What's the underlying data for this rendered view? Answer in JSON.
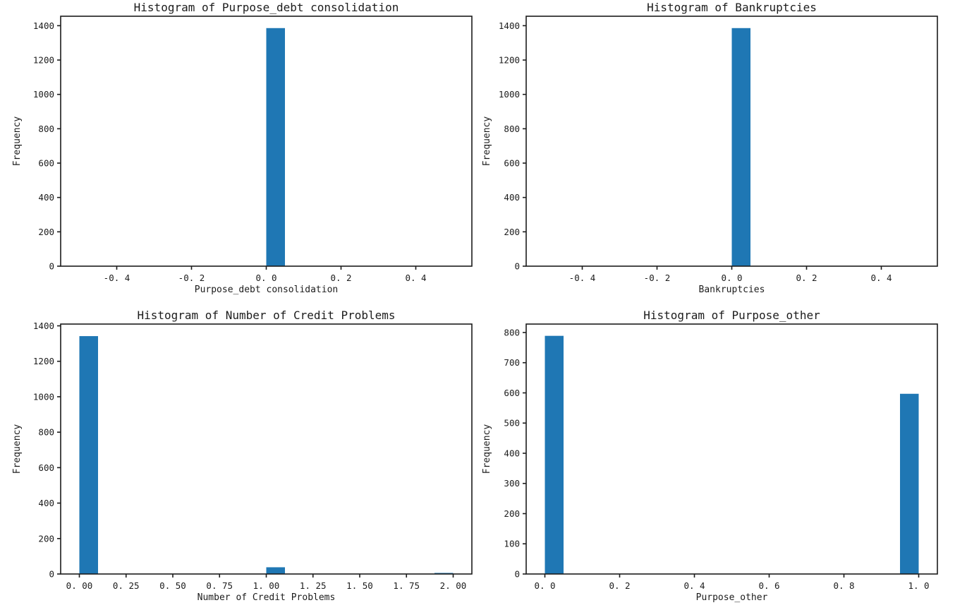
{
  "figure": {
    "background": "#ffffff",
    "bar_color": "#1f77b4",
    "axis_color": "#1c1c1c",
    "text_color": "#1c1c1c"
  },
  "chart_data": [
    {
      "type": "bar",
      "variant": "histogram",
      "title": "Histogram of Purpose_debt consolidation",
      "xlabel": "Purpose_debt consolidation",
      "ylabel": "Frequency",
      "xlim": [
        -0.55,
        0.55
      ],
      "ylim": [
        0,
        1455
      ],
      "grid": false,
      "legend": null,
      "xticks": {
        "values": [
          -0.4,
          -0.2,
          0.0,
          0.2,
          0.4
        ],
        "labels": [
          "-0. 4",
          "-0. 2",
          "0. 0",
          "0. 2",
          "0. 4"
        ]
      },
      "yticks": {
        "values": [
          0,
          200,
          400,
          600,
          800,
          1000,
          1200,
          1400
        ],
        "labels": [
          "0",
          "200",
          "400",
          "600",
          "800",
          "1000",
          "1200",
          "1400"
        ]
      },
      "bin_width": 0.05,
      "bars": [
        {
          "x0": 0.0,
          "x1": 0.05,
          "count": 1386
        }
      ]
    },
    {
      "type": "bar",
      "variant": "histogram",
      "title": "Histogram of Bankruptcies",
      "xlabel": "Bankruptcies",
      "ylabel": "Frequency",
      "xlim": [
        -0.55,
        0.55
      ],
      "ylim": [
        0,
        1455
      ],
      "grid": false,
      "legend": null,
      "xticks": {
        "values": [
          -0.4,
          -0.2,
          0.0,
          0.2,
          0.4
        ],
        "labels": [
          "-0. 4",
          "-0. 2",
          "0. 0",
          "0. 2",
          "0. 4"
        ]
      },
      "yticks": {
        "values": [
          0,
          200,
          400,
          600,
          800,
          1000,
          1200,
          1400
        ],
        "labels": [
          "0",
          "200",
          "400",
          "600",
          "800",
          "1000",
          "1200",
          "1400"
        ]
      },
      "bin_width": 0.05,
      "bars": [
        {
          "x0": 0.0,
          "x1": 0.05,
          "count": 1386
        }
      ]
    },
    {
      "type": "bar",
      "variant": "histogram",
      "title": "Histogram of Number of Credit Problems",
      "xlabel": "Number of Credit Problems",
      "ylabel": "Frequency",
      "xlim": [
        -0.1,
        2.1
      ],
      "ylim": [
        0,
        1410
      ],
      "grid": false,
      "legend": null,
      "xticks": {
        "values": [
          0.0,
          0.25,
          0.5,
          0.75,
          1.0,
          1.25,
          1.5,
          1.75,
          2.0
        ],
        "labels": [
          "0. 00",
          "0. 25",
          "0. 50",
          "0. 75",
          "1. 00",
          "1. 25",
          "1. 50",
          "1. 75",
          "2. 00"
        ]
      },
      "yticks": {
        "values": [
          0,
          200,
          400,
          600,
          800,
          1000,
          1200,
          1400
        ],
        "labels": [
          "0",
          "200",
          "400",
          "600",
          "800",
          "1000",
          "1200",
          "1400"
        ]
      },
      "bin_width": 0.1,
      "bars": [
        {
          "x0": 0.0,
          "x1": 0.1,
          "count": 1342
        },
        {
          "x0": 1.0,
          "x1": 1.1,
          "count": 38
        },
        {
          "x0": 1.9,
          "x1": 2.0,
          "count": 6
        }
      ]
    },
    {
      "type": "bar",
      "variant": "histogram",
      "title": "Histogram of Purpose_other",
      "xlabel": "Purpose_other",
      "ylabel": "Frequency",
      "xlim": [
        -0.05,
        1.05
      ],
      "ylim": [
        0,
        828
      ],
      "grid": false,
      "legend": null,
      "xticks": {
        "values": [
          0.0,
          0.2,
          0.4,
          0.6,
          0.8,
          1.0
        ],
        "labels": [
          "0. 0",
          "0. 2",
          "0. 4",
          "0. 6",
          "0. 8",
          "1. 0"
        ]
      },
      "yticks": {
        "values": [
          0,
          100,
          200,
          300,
          400,
          500,
          600,
          700,
          800
        ],
        "labels": [
          "0",
          "100",
          "200",
          "300",
          "400",
          "500",
          "600",
          "700",
          "800"
        ]
      },
      "bin_width": 0.05,
      "bars": [
        {
          "x0": 0.0,
          "x1": 0.05,
          "count": 789
        },
        {
          "x0": 0.95,
          "x1": 1.0,
          "count": 597
        }
      ]
    }
  ]
}
